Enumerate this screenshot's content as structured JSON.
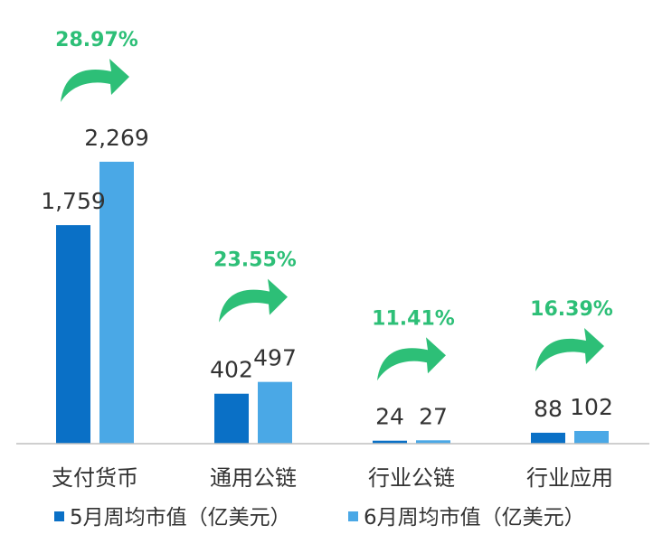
{
  "chart_data": {
    "type": "bar",
    "categories": [
      "支付货币",
      "通用公链",
      "行业公链",
      "行业应用"
    ],
    "series": [
      {
        "name": "5月周均市值（亿美元）",
        "color": "#0a70c6",
        "values": [
          1759,
          402,
          24,
          88
        ],
        "labels": [
          "1,759",
          "402",
          "24",
          "88"
        ]
      },
      {
        "name": "6月周均市值（亿美元）",
        "color": "#4aa8e6",
        "values": [
          2269,
          497,
          27,
          102
        ],
        "labels": [
          "2,269",
          "497",
          "27",
          "102"
        ]
      }
    ],
    "growth": [
      "28.97%",
      "23.55%",
      "11.41%",
      "16.39%"
    ],
    "growth_color": "#2dbf77",
    "axis_color": "#bfbfbf",
    "ylim": [
      0,
      2269
    ],
    "grid": false,
    "legend": "bottom-left"
  }
}
